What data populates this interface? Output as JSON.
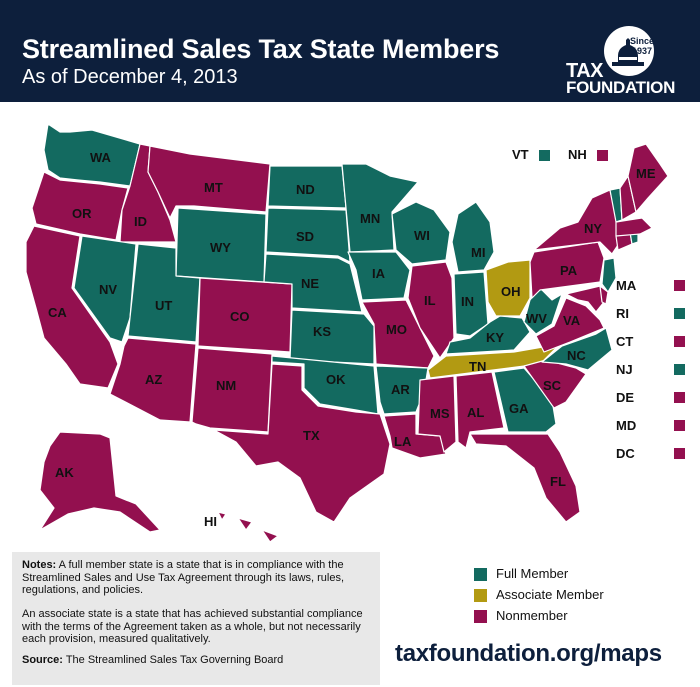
{
  "header": {
    "title": "Streamlined Sales Tax State Members",
    "subtitle": "As of December 4, 2013",
    "logo_since": "Since",
    "logo_year": "1937",
    "logo_tax": "TAX",
    "logo_foundation": "FOUNDATION"
  },
  "colors": {
    "full_member": "#136a60",
    "associate_member": "#b29a12",
    "nonmember": "#93104f",
    "header_bg": "#0d1f3c"
  },
  "states": [
    {
      "abbr": "WA",
      "status": "full"
    },
    {
      "abbr": "OR",
      "status": "non"
    },
    {
      "abbr": "CA",
      "status": "non"
    },
    {
      "abbr": "ID",
      "status": "non"
    },
    {
      "abbr": "NV",
      "status": "full"
    },
    {
      "abbr": "MT",
      "status": "non"
    },
    {
      "abbr": "WY",
      "status": "full"
    },
    {
      "abbr": "UT",
      "status": "full"
    },
    {
      "abbr": "AZ",
      "status": "non"
    },
    {
      "abbr": "CO",
      "status": "non"
    },
    {
      "abbr": "NM",
      "status": "non"
    },
    {
      "abbr": "ND",
      "status": "full"
    },
    {
      "abbr": "SD",
      "status": "full"
    },
    {
      "abbr": "NE",
      "status": "full"
    },
    {
      "abbr": "KS",
      "status": "full"
    },
    {
      "abbr": "OK",
      "status": "full"
    },
    {
      "abbr": "TX",
      "status": "non"
    },
    {
      "abbr": "MN",
      "status": "full"
    },
    {
      "abbr": "IA",
      "status": "full"
    },
    {
      "abbr": "MO",
      "status": "non"
    },
    {
      "abbr": "AR",
      "status": "full"
    },
    {
      "abbr": "LA",
      "status": "non"
    },
    {
      "abbr": "WI",
      "status": "full"
    },
    {
      "abbr": "IL",
      "status": "non"
    },
    {
      "abbr": "MI",
      "status": "full"
    },
    {
      "abbr": "IN",
      "status": "full"
    },
    {
      "abbr": "OH",
      "status": "assoc"
    },
    {
      "abbr": "KY",
      "status": "full"
    },
    {
      "abbr": "TN",
      "status": "assoc"
    },
    {
      "abbr": "MS",
      "status": "non"
    },
    {
      "abbr": "AL",
      "status": "non"
    },
    {
      "abbr": "GA",
      "status": "full"
    },
    {
      "abbr": "FL",
      "status": "non"
    },
    {
      "abbr": "SC",
      "status": "non"
    },
    {
      "abbr": "NC",
      "status": "full"
    },
    {
      "abbr": "VA",
      "status": "non"
    },
    {
      "abbr": "WV",
      "status": "full"
    },
    {
      "abbr": "PA",
      "status": "non"
    },
    {
      "abbr": "NY",
      "status": "non"
    },
    {
      "abbr": "ME",
      "status": "non"
    },
    {
      "abbr": "AK",
      "status": "non"
    },
    {
      "abbr": "HI",
      "status": "non"
    }
  ],
  "top_small_states": [
    {
      "abbr": "VT",
      "status": "full"
    },
    {
      "abbr": "NH",
      "status": "non"
    }
  ],
  "side_small_states": [
    {
      "abbr": "MA",
      "status": "non"
    },
    {
      "abbr": "RI",
      "status": "full"
    },
    {
      "abbr": "CT",
      "status": "non"
    },
    {
      "abbr": "NJ",
      "status": "full"
    },
    {
      "abbr": "DE",
      "status": "non"
    },
    {
      "abbr": "MD",
      "status": "non"
    },
    {
      "abbr": "DC",
      "status": "non"
    }
  ],
  "notes": {
    "p1_label": "Notes:",
    "p1_text": " A full member state is a state that is in compliance with the Streamlined Sales and Use Tax Agreement through its laws, rules, regulations, and policies.",
    "p2_text": "An associate state is a state that has achieved substantial compliance with the terms of the Agreement taken as a whole, but not necessarily each provision, measured qualitatively.",
    "source_label": "Source:",
    "source_text": " The Streamlined Sales Tax Governing Board"
  },
  "legend": [
    {
      "label": "Full Member",
      "status": "full"
    },
    {
      "label": "Associate Member",
      "status": "assoc"
    },
    {
      "label": "Nonmember",
      "status": "non"
    }
  ],
  "url": "taxfoundation.org/maps"
}
